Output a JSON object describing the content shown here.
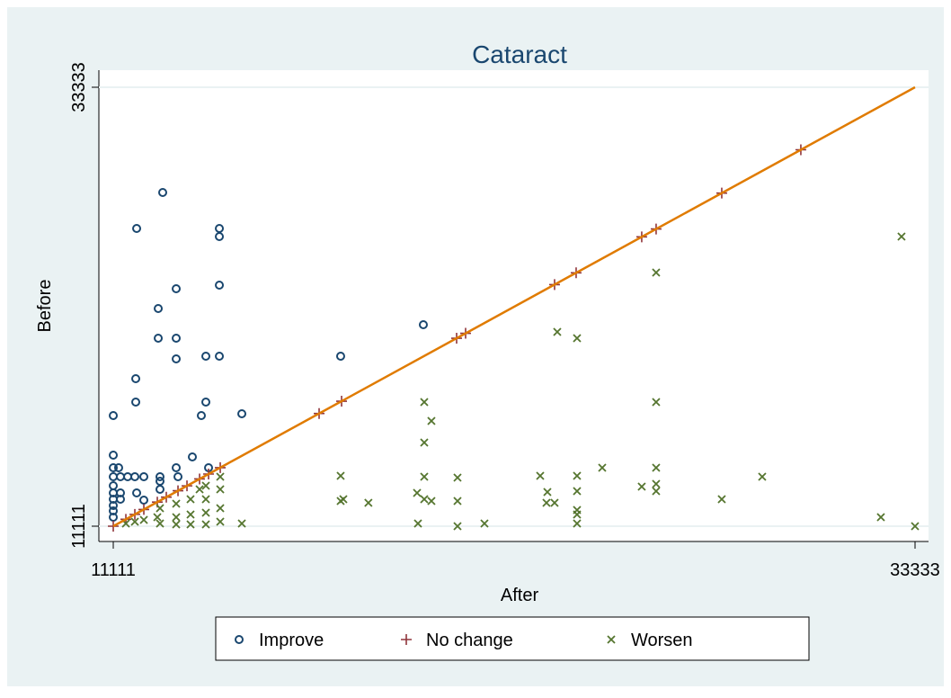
{
  "chart_data": {
    "type": "scatter",
    "title": "Cataract",
    "x_label": "After",
    "y_label": "Before",
    "xlim": [
      10712,
      33707
    ],
    "ylim": [
      10337,
      34198
    ],
    "xticks": [
      11111,
      33333
    ],
    "yticks": [
      11111,
      33333
    ],
    "grid": true,
    "legend": "bottom",
    "series": [
      {
        "name": "Improve",
        "color": "#1a476f",
        "marker": "circle",
        "x": [
          11111,
          11111,
          11111,
          11111,
          11111,
          11111,
          11111,
          11111,
          11111,
          11111,
          11260,
          11310,
          11310,
          11310,
          11510,
          11734,
          11734,
          11759,
          11709,
          11759,
          11958,
          11958,
          12357,
          12357,
          12406,
          12406,
          12406,
          12481,
          12855,
          12855,
          12855,
          12855,
          12905,
          13303,
          13552,
          13677,
          13677,
          13752,
          14051,
          14051,
          14051,
          14051,
          14674,
          17413,
          19705
        ],
        "y": [
          16712,
          14709,
          14071,
          13616,
          13160,
          12796,
          12477,
          12158,
          11885,
          11566,
          14071,
          13616,
          12796,
          12477,
          13616,
          18579,
          17395,
          26184,
          13616,
          12796,
          13616,
          12432,
          22131,
          20629,
          13616,
          13388,
          12977,
          28006,
          23133,
          20629,
          19581,
          14071,
          13616,
          14617,
          16712,
          17395,
          19718,
          14071,
          26184,
          25774,
          23315,
          19718,
          16803,
          19718,
          21312
        ]
      },
      {
        "name": "No change",
        "color": "#90353b",
        "marker": "plus",
        "x": [
          11111,
          11460,
          11709,
          11958,
          12332,
          12581,
          12905,
          13154,
          13503,
          13752,
          14076,
          16816,
          17439,
          20627,
          20876,
          23342,
          23940,
          25758,
          26157,
          27976,
          30168
        ],
        "y": [
          11111,
          11460,
          11709,
          11958,
          12332,
          12581,
          12905,
          13154,
          13503,
          13752,
          14076,
          16816,
          17439,
          20627,
          20876,
          23342,
          23940,
          25758,
          26157,
          27976,
          30168
        ]
      },
      {
        "name": "Worsen",
        "color": "#55752f",
        "marker": "x",
        "x": [
          32958,
          26157,
          23417,
          23965,
          26157,
          19730,
          19929,
          19730,
          17413,
          19730,
          20652,
          22944,
          23965,
          24663,
          26157,
          29097,
          25758,
          26157,
          26157,
          23143,
          23965,
          19531,
          23118,
          23342,
          17488,
          17413,
          18182,
          19730,
          19929,
          20652,
          27976,
          23965,
          23965,
          23965,
          21399,
          20652,
          19556,
          14674,
          32386,
          33333,
          11460,
          11709,
          11958,
          12332,
          12406,
          12406,
          12855,
          12855,
          12855,
          13253,
          13253,
          13253,
          13503,
          13677,
          13677,
          13677,
          13677,
          14076,
          14076,
          14076,
          14076
        ],
        "y": [
          25774,
          23953,
          20947,
          20629,
          17395,
          17395,
          16439,
          15346,
          13661,
          13616,
          13570,
          13661,
          13661,
          14071,
          14071,
          13616,
          13115,
          13251,
          12887,
          12842,
          12887,
          12796,
          12295,
          12295,
          12477,
          12386,
          12295,
          12477,
          12386,
          12386,
          12477,
          11931,
          11703,
          11248,
          11248,
          11111,
          11248,
          11248,
          11566,
          11111,
          11248,
          11339,
          11430,
          11566,
          12022,
          11248,
          12250,
          11566,
          11202,
          12477,
          11703,
          11202,
          12977,
          13160,
          12477,
          11794,
          11202,
          13616,
          12977,
          12022,
          11339
        ]
      }
    ],
    "fit_line": {
      "color": "#e07b00",
      "x": [
        11111,
        33333
      ],
      "y": [
        11111,
        33333
      ]
    }
  }
}
